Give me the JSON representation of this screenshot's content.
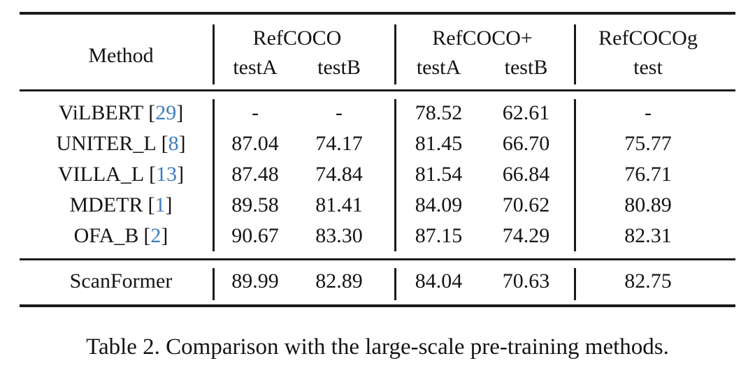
{
  "colors": {
    "citation": "#3d7cc0",
    "text": "#141414",
    "rule": "#1b1b1b"
  },
  "table": {
    "header": {
      "method_label": "Method",
      "groups": [
        {
          "label": "RefCOCO",
          "subcolumns": [
            "testA",
            "testB"
          ]
        },
        {
          "label": "RefCOCO+",
          "subcolumns": [
            "testA",
            "testB"
          ]
        },
        {
          "label": "RefCOCOg",
          "subcolumns": [
            "test"
          ]
        }
      ]
    },
    "cite_open": "[",
    "cite_close": "]",
    "rows": [
      {
        "method": "ViLBERT",
        "cite": "29",
        "values": [
          "-",
          "-",
          "78.52",
          "62.61",
          "-"
        ]
      },
      {
        "method": "UNITER_L",
        "cite": "8",
        "values": [
          "87.04",
          "74.17",
          "81.45",
          "66.70",
          "75.77"
        ]
      },
      {
        "method": "VILLA_L",
        "cite": "13",
        "values": [
          "87.48",
          "74.84",
          "81.54",
          "66.84",
          "76.71"
        ]
      },
      {
        "method": "MDETR",
        "cite": "1",
        "values": [
          "89.58",
          "81.41",
          "84.09",
          "70.62",
          "80.89"
        ]
      },
      {
        "method": "OFA_B",
        "cite": "2",
        "values": [
          "90.67",
          "83.30",
          "87.15",
          "74.29",
          "82.31"
        ]
      }
    ],
    "highlight_row": {
      "method": "ScanFormer",
      "values": [
        "89.99",
        "82.89",
        "84.04",
        "70.63",
        "82.75"
      ]
    }
  },
  "caption": "Table 2. Comparison with the large-scale pre-training methods."
}
